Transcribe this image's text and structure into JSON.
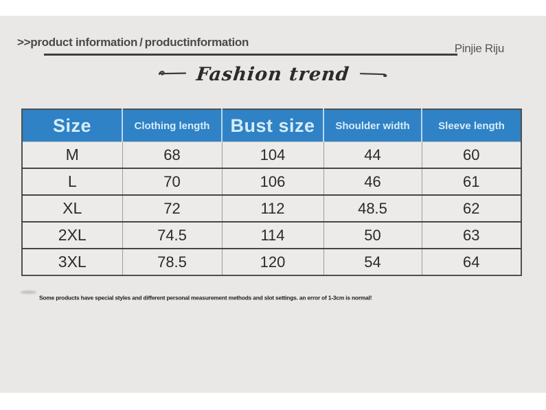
{
  "page": {
    "panel_color": "#e9e8e6"
  },
  "header": {
    "title": ">>product information / productinformation",
    "brand": "Pinjie Riju"
  },
  "banner": {
    "text": "Fashion trend"
  },
  "size_chart": {
    "header_bg": "#2e82c5",
    "header_text_color": "#d9ecf9",
    "columns": [
      {
        "label": "Size",
        "emphasis": true
      },
      {
        "label": "Clothing length",
        "emphasis": false
      },
      {
        "label": "Bust size",
        "emphasis": true
      },
      {
        "label": "Shoulder width",
        "emphasis": false
      },
      {
        "label": "Sleeve length",
        "emphasis": false
      }
    ],
    "rows": [
      [
        "M",
        "68",
        "104",
        "44",
        "60"
      ],
      [
        "L",
        "70",
        "106",
        "46",
        "61"
      ],
      [
        "XL",
        "72",
        "112",
        "48.5",
        "62"
      ],
      [
        "2XL",
        "74.5",
        "114",
        "50",
        "63"
      ],
      [
        "3XL",
        "78.5",
        "120",
        "54",
        "64"
      ]
    ]
  },
  "footnote": {
    "text": "Some products have special styles and different personal measurement methods and slot settings. an error of 1-3cm is normal!"
  }
}
